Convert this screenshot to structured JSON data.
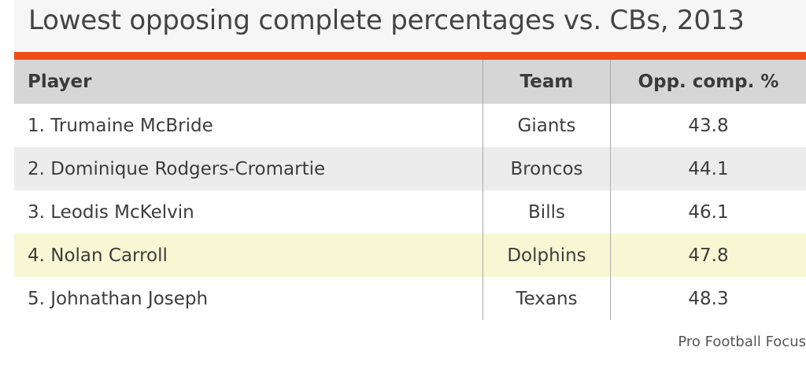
{
  "title": "Lowest opposing complete percentages vs. CBs, 2013",
  "accent_color": "#f04e17",
  "highlight_color": "#f7f7d3",
  "source": "Pro Football Focus",
  "chart_data": {
    "type": "table",
    "title": "Lowest opposing complete percentages vs. CBs, 2013",
    "columns": [
      "Player",
      "Team",
      "Opp. comp. %"
    ],
    "rows": [
      {
        "player": "1. Trumaine McBride",
        "team": "Giants",
        "value": "43.8"
      },
      {
        "player": "2. Dominique Rodgers-Cromartie",
        "team": "Broncos",
        "value": "44.1"
      },
      {
        "player": "3. Leodis McKelvin",
        "team": "Bills",
        "value": "46.1"
      },
      {
        "player": "4. Nolan Carroll",
        "team": "Dolphins",
        "value": "47.8",
        "highlighted": true
      },
      {
        "player": "5. Johnathan Joseph",
        "team": "Texans",
        "value": "48.3"
      }
    ]
  }
}
